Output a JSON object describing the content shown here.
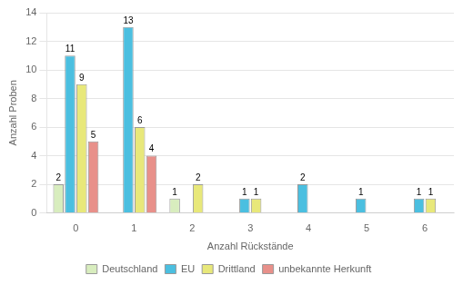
{
  "chart_data": {
    "type": "bar",
    "ylabel": "Anzahl Proben",
    "xlabel": "Anzahl Rückstände",
    "categories": [
      0,
      1,
      2,
      3,
      4,
      5,
      6
    ],
    "series": [
      {
        "name": "Deutschland",
        "color": "#d8edbe",
        "values": [
          2,
          0,
          1,
          0,
          0,
          0,
          0
        ]
      },
      {
        "name": "EU",
        "color": "#4bbfe0",
        "values": [
          11,
          13,
          0,
          1,
          2,
          1,
          1
        ]
      },
      {
        "name": "Drittland",
        "color": "#e8e87a",
        "values": [
          9,
          6,
          2,
          1,
          0,
          0,
          1
        ]
      },
      {
        "name": "unbekannte Herkunft",
        "color": "#e8908a",
        "values": [
          5,
          4,
          0,
          0,
          0,
          0,
          0
        ]
      }
    ],
    "ylim": [
      0,
      14
    ],
    "yticks": [
      0,
      2,
      4,
      6,
      8,
      10,
      12,
      14
    ],
    "grid": true,
    "legend": "bottom",
    "data_labels": true
  }
}
